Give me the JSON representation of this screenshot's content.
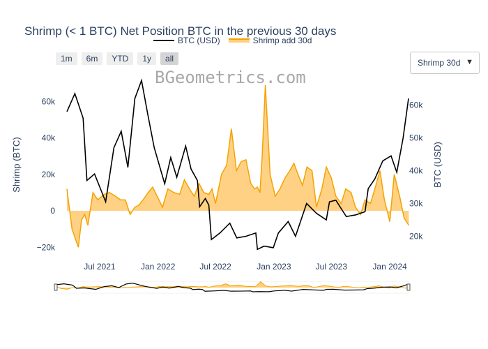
{
  "title": "Shrimp (< 1 BTC) Net Position BTC in the previous 30 days",
  "legend": {
    "btc": "BTC (USD)",
    "shrimp": "Shrimp add 30d"
  },
  "range_buttons": [
    "1m",
    "6m",
    "YTD",
    "1y",
    "all"
  ],
  "active_range": "all",
  "dropdown": {
    "selected": "Shrimp 30d",
    "arrow": "▼"
  },
  "watermark": "BGeometrics.com",
  "colors": {
    "btc": "#000000",
    "shrimp_line": "#f5a300",
    "shrimp_fill": "#ffcf7d"
  },
  "chart_data": {
    "type": "line",
    "title": "Shrimp (< 1 BTC) Net Position BTC in the previous 30 days",
    "xlabel": "",
    "x_ticks": [
      "Jul 2021",
      "Jan 2022",
      "Jul 2022",
      "Jan 2023",
      "Jul 2023",
      "Jan 2024"
    ],
    "y_left": {
      "label": "Shrimp (BTC)",
      "ticks": [
        "−20k",
        "0",
        "20k",
        "40k",
        "60k"
      ],
      "range": [
        -22000,
        70000
      ]
    },
    "y_right": {
      "label": "BTC (USD)",
      "ticks": [
        "20k",
        "30k",
        "40k",
        "50k",
        "60k"
      ],
      "range": [
        16000,
        66000
      ]
    },
    "legend_position": "top",
    "grid": false,
    "series": [
      {
        "name": "BTC (USD)",
        "axis": "right",
        "style": "line",
        "x": [
          "2021-03-20",
          "2021-04-14",
          "2021-05-10",
          "2021-05-22",
          "2021-06-15",
          "2021-07-20",
          "2021-08-15",
          "2021-09-07",
          "2021-09-28",
          "2021-10-20",
          "2021-11-10",
          "2021-11-30",
          "2021-12-20",
          "2022-01-22",
          "2022-02-10",
          "2022-03-01",
          "2022-03-29",
          "2022-04-15",
          "2022-05-05",
          "2022-05-12",
          "2022-05-30",
          "2022-06-10",
          "2022-06-18",
          "2022-07-15",
          "2022-08-15",
          "2022-09-06",
          "2022-10-05",
          "2022-11-05",
          "2022-11-10",
          "2022-12-01",
          "2022-12-30",
          "2023-01-15",
          "2023-02-15",
          "2023-03-10",
          "2023-04-14",
          "2023-05-15",
          "2023-06-15",
          "2023-06-25",
          "2023-07-15",
          "2023-08-17",
          "2023-09-15",
          "2023-10-15",
          "2023-10-25",
          "2023-11-15",
          "2023-12-10",
          "2024-01-05",
          "2024-01-23",
          "2024-02-12",
          "2024-02-29"
        ],
        "y": [
          58000,
          63500,
          56000,
          37000,
          39000,
          30500,
          47000,
          52000,
          41000,
          62000,
          67500,
          57000,
          47000,
          36000,
          44000,
          38000,
          47500,
          40500,
          37000,
          29000,
          31500,
          29500,
          19000,
          21000,
          24000,
          19500,
          20000,
          21000,
          16000,
          17000,
          16500,
          21000,
          24500,
          20000,
          30000,
          27000,
          25000,
          30500,
          31000,
          26000,
          26500,
          27500,
          34500,
          37500,
          43000,
          44500,
          39500,
          50000,
          62000
        ]
      },
      {
        "name": "Shrimp add 30d",
        "axis": "left",
        "style": "area",
        "x": [
          "2021-03-20",
          "2021-04-05",
          "2021-04-25",
          "2021-05-05",
          "2021-05-15",
          "2021-05-25",
          "2021-06-10",
          "2021-06-25",
          "2021-07-15",
          "2021-08-01",
          "2021-08-20",
          "2021-09-05",
          "2021-09-20",
          "2021-10-05",
          "2021-10-20",
          "2021-11-01",
          "2021-11-15",
          "2021-12-01",
          "2021-12-15",
          "2022-01-01",
          "2022-01-15",
          "2022-02-01",
          "2022-02-20",
          "2022-03-10",
          "2022-03-25",
          "2022-04-10",
          "2022-04-25",
          "2022-05-10",
          "2022-05-25",
          "2022-06-10",
          "2022-06-20",
          "2022-07-01",
          "2022-07-20",
          "2022-08-05",
          "2022-08-20",
          "2022-09-05",
          "2022-09-20",
          "2022-10-05",
          "2022-10-20",
          "2022-11-01",
          "2022-11-10",
          "2022-11-18",
          "2022-11-25",
          "2022-12-05",
          "2022-12-20",
          "2023-01-05",
          "2023-01-20",
          "2023-02-05",
          "2023-02-20",
          "2023-03-05",
          "2023-03-20",
          "2023-04-01",
          "2023-04-15",
          "2023-05-01",
          "2023-05-15",
          "2023-06-01",
          "2023-06-15",
          "2023-07-01",
          "2023-07-15",
          "2023-08-01",
          "2023-08-15",
          "2023-09-01",
          "2023-09-15",
          "2023-10-01",
          "2023-10-15",
          "2023-11-01",
          "2023-11-15",
          "2023-12-01",
          "2023-12-15",
          "2024-01-01",
          "2024-01-15",
          "2024-02-01",
          "2024-02-15",
          "2024-03-01"
        ],
        "y": [
          12000,
          -10000,
          -20000,
          -5000,
          -2000,
          -8000,
          10000,
          6000,
          9000,
          10000,
          8000,
          6000,
          6000,
          -2000,
          2000,
          3000,
          6000,
          10000,
          13000,
          7000,
          2000,
          12000,
          10000,
          9000,
          17000,
          12000,
          8000,
          15000,
          10000,
          9000,
          12000,
          4000,
          20000,
          25000,
          45000,
          22000,
          27000,
          28000,
          15000,
          12000,
          13000,
          10000,
          30000,
          69000,
          20000,
          8000,
          12000,
          18000,
          22000,
          26000,
          19000,
          14000,
          24000,
          22000,
          2000,
          12000,
          24000,
          18000,
          8000,
          4000,
          12000,
          10000,
          2000,
          -2000,
          6000,
          4000,
          12000,
          22000,
          6000,
          -6000,
          20000,
          8000,
          -4000,
          -8000
        ]
      }
    ]
  }
}
